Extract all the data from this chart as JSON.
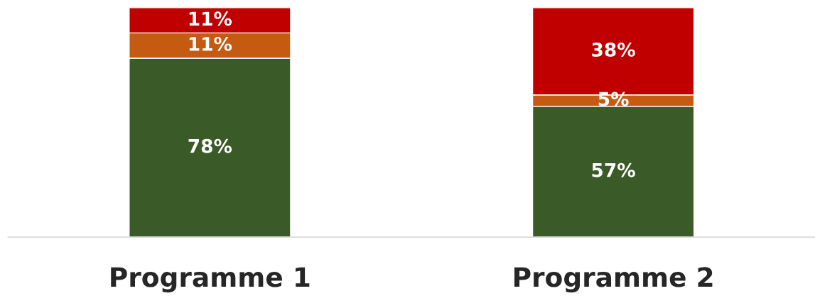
{
  "chart_data": {
    "type": "bar",
    "stacked": true,
    "categories": [
      "Programme 1",
      "Programme 2"
    ],
    "series": [
      {
        "color": "#3a5a27",
        "values": [
          78,
          57
        ],
        "value_labels": [
          "78%",
          "57%"
        ]
      },
      {
        "color": "#c55a11",
        "values": [
          11,
          5
        ],
        "value_labels": [
          "11%",
          "5%"
        ]
      },
      {
        "color": "#c00000",
        "values": [
          11,
          38
        ],
        "value_labels": [
          "11%",
          "38%"
        ]
      }
    ],
    "ylim": [
      0,
      100
    ],
    "tick_labels": "x",
    "grid": false,
    "legend": false
  }
}
